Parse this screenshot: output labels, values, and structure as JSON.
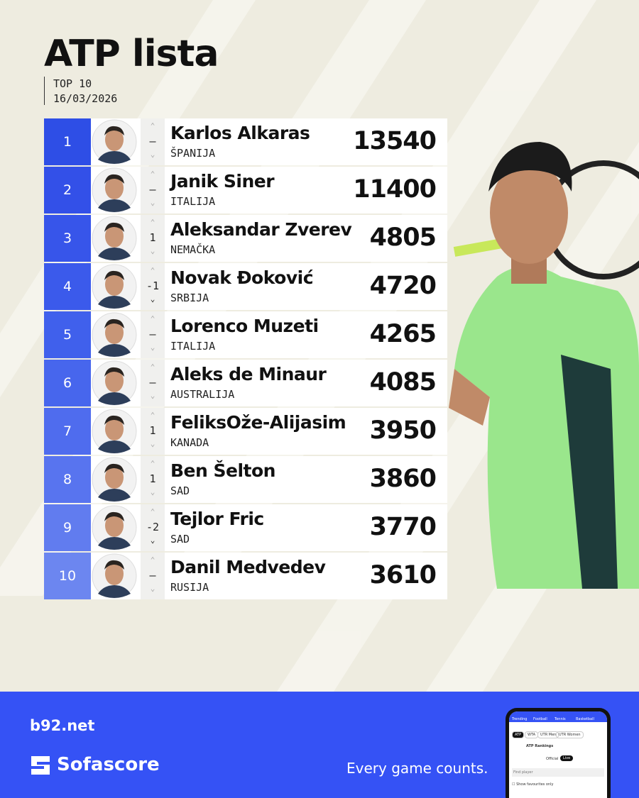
{
  "header": {
    "title": "ATP lista",
    "subtitle": "TOP 10",
    "date": "16/03/2026"
  },
  "table": {
    "rows": [
      {
        "rank": 1,
        "change": "–",
        "name": "Karlos Alkaras",
        "country": "ŠPANIJA",
        "points": 13540
      },
      {
        "rank": 2,
        "change": "–",
        "name": "Janik Siner",
        "country": "ITALIJA",
        "points": 11400
      },
      {
        "rank": 3,
        "change": "1",
        "name": "Aleksandar Zverev",
        "country": "NEMAČKA",
        "points": 4805
      },
      {
        "rank": 4,
        "change": "-1",
        "name": "Novak Đoković",
        "country": "SRBIJA",
        "points": 4720
      },
      {
        "rank": 5,
        "change": "–",
        "name": "Lorenco Muzeti",
        "country": "ITALIJA",
        "points": 4265
      },
      {
        "rank": 6,
        "change": "–",
        "name": "Aleks de Minaur",
        "country": "AUSTRALIJA",
        "points": 4085
      },
      {
        "rank": 7,
        "change": "1",
        "name": "FeliksOže-Alijasim",
        "country": "KANADA",
        "points": 3950
      },
      {
        "rank": 8,
        "change": "1",
        "name": "Ben Šelton",
        "country": "SAD",
        "points": 3860
      },
      {
        "rank": 9,
        "change": "-2",
        "name": "Tejlor Fric",
        "country": "SAD",
        "points": 3770
      },
      {
        "rank": 10,
        "change": "–",
        "name": "Danil Medvedev",
        "country": "RUSIJA",
        "points": 3610
      }
    ]
  },
  "footer": {
    "site": "b92.net",
    "brand": "Sofascore",
    "slogan": "Every game counts."
  },
  "phone": {
    "tabs": [
      "Trending",
      "Football",
      "Tennis",
      "Basketball"
    ],
    "filters": [
      "ATP",
      "WTA",
      "UTR Men",
      "UTR Women"
    ],
    "heading": "ATP Rankings",
    "toggle": [
      "Official",
      "Live"
    ],
    "search": "Find player",
    "checkbox": "Show favourites only"
  }
}
